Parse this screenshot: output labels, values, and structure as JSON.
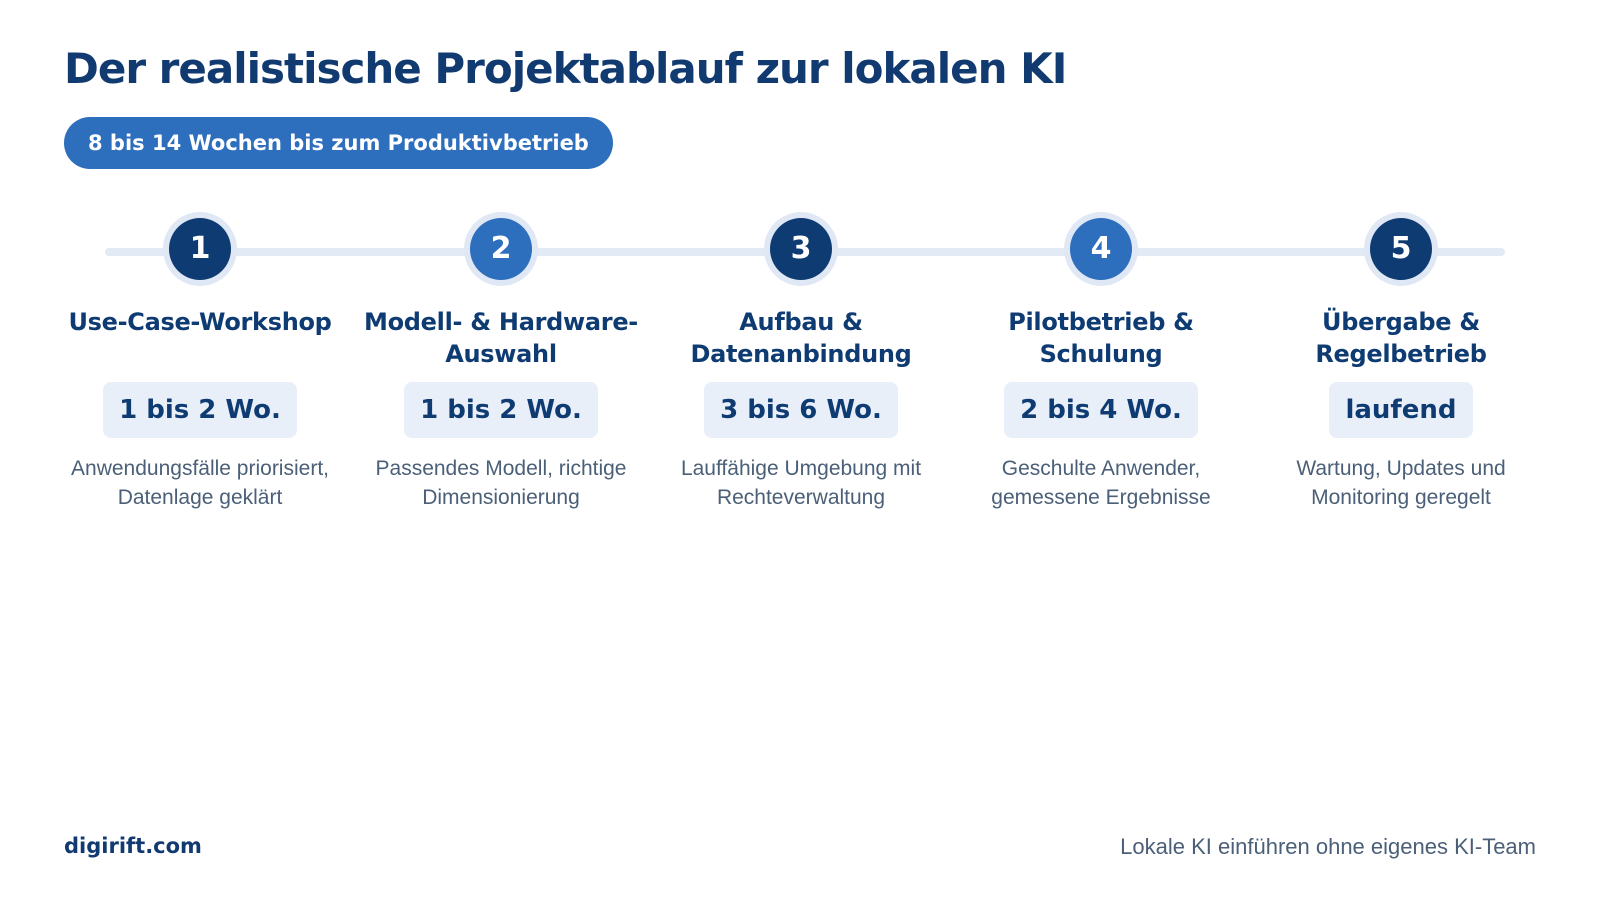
{
  "title": "Der realistische Projektablauf zur lokalen KI",
  "badge": "8 bis 14 Wochen bis zum Produktivbetrieb",
  "steps": [
    {
      "number": "1",
      "title": "Use-Case-Workshop",
      "duration": "1 bis 2 Wo.",
      "description": "Anwendungsfälle priorisiert, Datenlage geklärt",
      "circle_color": "#0f3b73"
    },
    {
      "number": "2",
      "title": "Modell- & Hardware-Auswahl",
      "duration": "1 bis 2 Wo.",
      "description": "Passendes Modell, richtige Dimensionierung",
      "circle_color": "#2d6ebd"
    },
    {
      "number": "3",
      "title": "Aufbau & Datenanbindung",
      "duration": "3 bis 6 Wo.",
      "description": "Lauffähige Umgebung mit Rechteverwaltung",
      "circle_color": "#0f3b73"
    },
    {
      "number": "4",
      "title": "Pilotbetrieb & Schulung",
      "duration": "2 bis 4 Wo.",
      "description": "Geschulte Anwender, gemessene Ergebnisse",
      "circle_color": "#2d6ebd"
    },
    {
      "number": "5",
      "title": "Übergabe & Regelbetrieb",
      "duration": "laufend",
      "description": "Wartung, Updates und Monitoring geregelt",
      "circle_color": "#0f3b73"
    }
  ],
  "footer": {
    "brand": "digirift.com",
    "tagline": "Lokale KI einführen ohne eigenes KI-Team"
  }
}
